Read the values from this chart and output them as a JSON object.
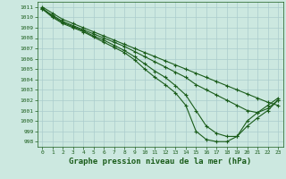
{
  "bg_color": "#cce8e0",
  "grid_color": "#aacccc",
  "line_color": "#1a5c1a",
  "line_width": 0.8,
  "marker": "+",
  "marker_size": 3,
  "marker_edge_width": 0.8,
  "title": "Graphe pression niveau de la mer (hPa)",
  "title_fontsize": 6.5,
  "xlim": [
    -0.5,
    23.5
  ],
  "ylim": [
    997.5,
    1011.5
  ],
  "yticks": [
    998,
    999,
    1000,
    1001,
    1002,
    1003,
    1004,
    1005,
    1006,
    1007,
    1008,
    1009,
    1010,
    1011
  ],
  "xticks": [
    0,
    1,
    2,
    3,
    4,
    5,
    6,
    7,
    8,
    9,
    10,
    11,
    12,
    13,
    14,
    15,
    16,
    17,
    18,
    19,
    20,
    21,
    22,
    23
  ],
  "series": [
    [
      1011.0,
      1010.4,
      1009.8,
      1009.4,
      1009.0,
      1008.6,
      1008.2,
      1007.8,
      1007.4,
      1007.0,
      1006.6,
      1006.2,
      1005.8,
      1005.4,
      1005.0,
      1004.6,
      1004.2,
      1003.8,
      1003.4,
      1003.0,
      1002.6,
      1002.2,
      1001.8,
      1001.5
    ],
    [
      1010.8,
      1010.2,
      1009.6,
      1009.2,
      1008.8,
      1008.4,
      1008.0,
      1007.6,
      1007.2,
      1006.7,
      1006.2,
      1005.7,
      1005.2,
      1004.7,
      1004.2,
      1003.5,
      1003.0,
      1002.5,
      1002.0,
      1001.5,
      1001.0,
      1000.8,
      1001.5,
      1002.2
    ],
    [
      1010.9,
      1010.1,
      1009.5,
      1009.1,
      1008.7,
      1008.2,
      1007.8,
      1007.3,
      1006.8,
      1006.2,
      1005.5,
      1004.8,
      1004.2,
      1003.4,
      1002.5,
      1001.0,
      999.5,
      998.8,
      998.5,
      998.5,
      999.5,
      1000.3,
      1001.0,
      1002.0
    ],
    [
      1010.8,
      1010.0,
      1009.4,
      1009.0,
      1008.6,
      1008.1,
      1007.6,
      1007.1,
      1006.6,
      1005.9,
      1005.0,
      1004.2,
      1003.5,
      1002.7,
      1001.5,
      999.0,
      998.2,
      998.0,
      998.0,
      998.5,
      1000.0,
      1000.8,
      1001.2,
      1002.0
    ]
  ]
}
